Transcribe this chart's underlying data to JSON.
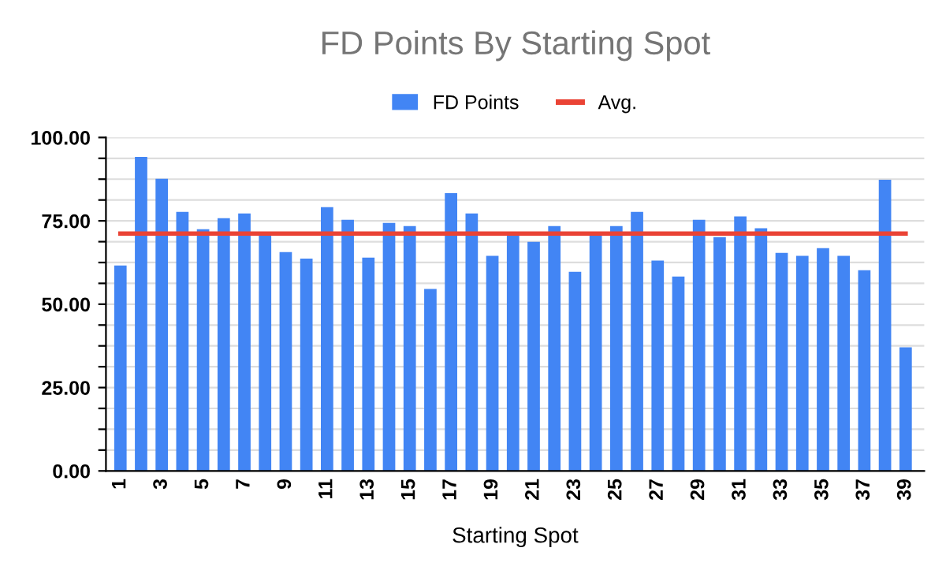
{
  "chart_data": {
    "type": "bar",
    "title": "FD Points By Starting Spot",
    "xlabel": "Starting Spot",
    "categories": [
      "1",
      null,
      "3",
      null,
      "5",
      null,
      "7",
      null,
      "9",
      null,
      "11",
      null,
      "13",
      null,
      "15",
      null,
      "17",
      null,
      "19",
      null,
      "21",
      null,
      "23",
      null,
      "25",
      null,
      "27",
      null,
      "29",
      null,
      "31",
      null,
      "33",
      null,
      "35",
      null,
      "37",
      null,
      "39"
    ],
    "series": [
      {
        "name": "FD Points",
        "color": "#4285f4",
        "values": [
          61.6,
          94.2,
          87.6,
          77.7,
          72.5,
          75.8,
          77.2,
          70.6,
          65.6,
          63.7,
          79.1,
          75.3,
          64.0,
          74.4,
          73.4,
          54.6,
          83.3,
          77.2,
          64.5,
          71.5,
          68.7,
          73.4,
          59.7,
          70.6,
          73.4,
          77.7,
          63.1,
          58.3,
          75.3,
          70.1,
          76.3,
          72.8,
          65.4,
          64.5,
          66.8,
          64.5,
          60.2,
          87.3,
          37.1
        ]
      },
      {
        "name": "Avg.",
        "type": "line",
        "color": "#ea4335",
        "values": [
          71.2,
          71.2,
          71.2,
          71.2,
          71.2,
          71.2,
          71.2,
          71.2,
          71.2,
          71.2,
          71.2,
          71.2,
          71.2,
          71.2,
          71.2,
          71.2,
          71.2,
          71.2,
          71.2,
          71.2,
          71.2,
          71.2,
          71.2,
          71.2,
          71.2,
          71.2,
          71.2,
          71.2,
          71.2,
          71.2,
          71.2,
          71.2,
          71.2,
          71.2,
          71.2,
          71.2,
          71.2,
          71.2,
          71.2
        ]
      }
    ],
    "ylim": [
      0,
      100
    ],
    "yticks": [
      {
        "value": 0,
        "label": "0.00"
      },
      {
        "value": 6.25,
        "label": null
      },
      {
        "value": 12.5,
        "label": null
      },
      {
        "value": 18.75,
        "label": null
      },
      {
        "value": 25,
        "label": "25.00"
      },
      {
        "value": 31.25,
        "label": null
      },
      {
        "value": 37.5,
        "label": null
      },
      {
        "value": 43.75,
        "label": null
      },
      {
        "value": 50,
        "label": "50.00"
      },
      {
        "value": 56.25,
        "label": null
      },
      {
        "value": 62.5,
        "label": null
      },
      {
        "value": 68.75,
        "label": null
      },
      {
        "value": 75,
        "label": "75.00"
      },
      {
        "value": 81.25,
        "label": null
      },
      {
        "value": 87.5,
        "label": null
      },
      {
        "value": 93.75,
        "label": null
      },
      {
        "value": 100,
        "label": "100.00"
      }
    ],
    "grid": "y",
    "legend": "top",
    "marker": "none",
    "line_style": "solid"
  }
}
